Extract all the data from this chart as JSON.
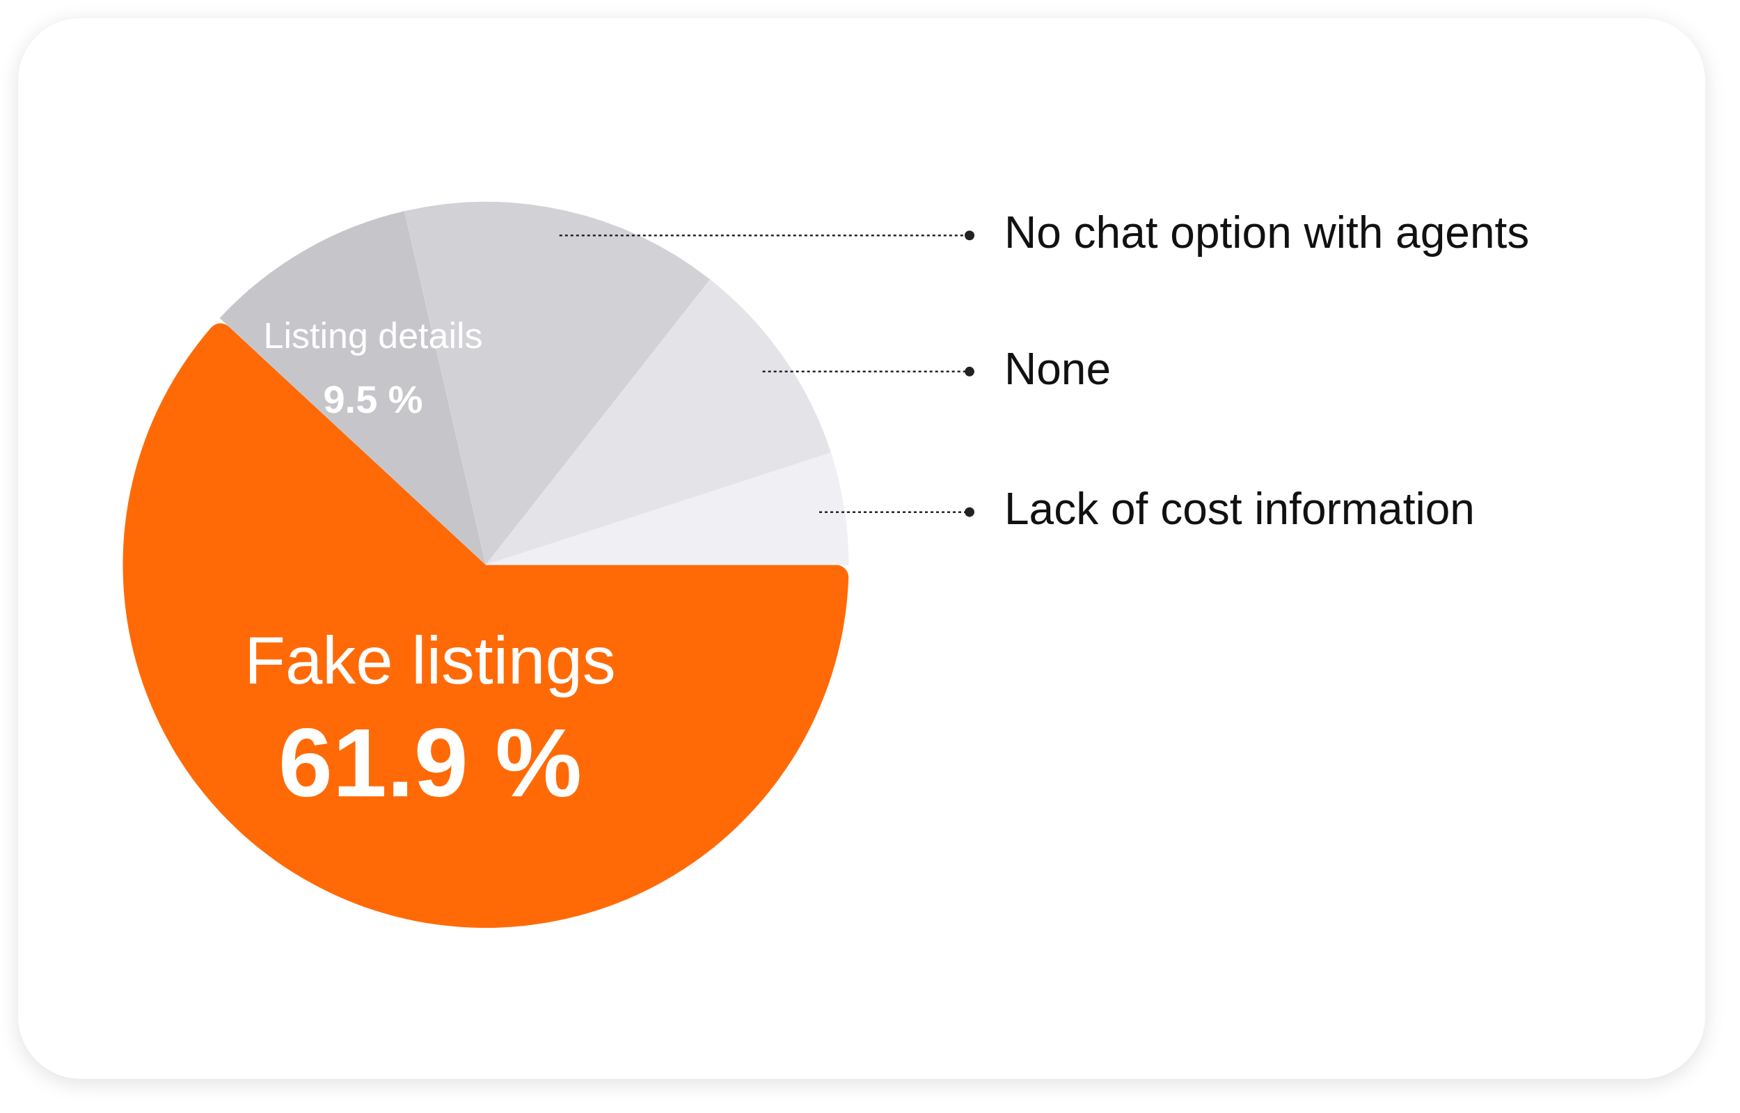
{
  "chart_data": {
    "type": "pie",
    "categories": [
      "Fake listings",
      "Listing details",
      "No chat option with agents",
      "None",
      "Lack of cost information"
    ],
    "values": [
      61.9,
      9.5,
      14.2,
      9.4,
      5.0
    ],
    "colors": [
      "#ff6a07",
      "#c6c6ca",
      "#d2d2d6",
      "#e4e4e8",
      "#f0f0f4"
    ],
    "value_labels": [
      "61.9 %",
      "9.5 %",
      null,
      null,
      null
    ],
    "legend": false
  }
}
